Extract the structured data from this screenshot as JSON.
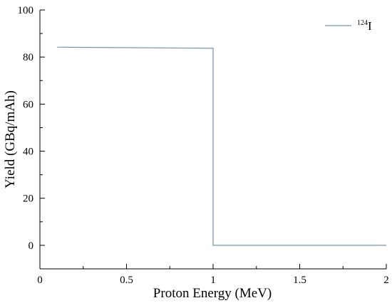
{
  "chart_data": {
    "type": "line",
    "title": "",
    "xlabel": "Proton Energy (MeV)",
    "ylabel": "Yield (GBq/mAh)",
    "xlim": [
      0,
      2
    ],
    "ylim": [
      -10,
      100
    ],
    "xticks": [
      0,
      0.5,
      1,
      1.5,
      2
    ],
    "xtick_labels": [
      "0",
      "0.5",
      "1",
      "1.5",
      "2"
    ],
    "yticks": [
      0,
      20,
      40,
      60,
      80,
      100
    ],
    "ytick_labels": [
      "0",
      "20",
      "40",
      "60",
      "80",
      "100"
    ],
    "grid": false,
    "legend_position": "top-right",
    "series": [
      {
        "name": "124I",
        "name_superscript": "124",
        "name_main": "I",
        "color": "#6f95ad",
        "points": [
          [
            0.1,
            84.2
          ],
          [
            1.0,
            83.7
          ],
          [
            1.0,
            0
          ],
          [
            2.0,
            0
          ]
        ]
      }
    ]
  }
}
